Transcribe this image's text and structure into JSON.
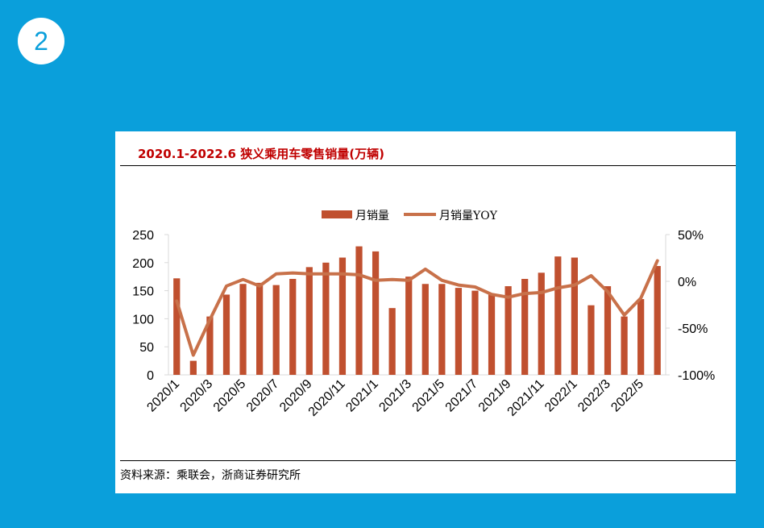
{
  "badge": {
    "number": "2"
  },
  "source": "资料来源：乘联会，浙商证券研究所",
  "colors": {
    "background": "#0a9fdb",
    "bar": "#c0502f",
    "line": "#c8714a",
    "title": "#c00000"
  },
  "chart_data": {
    "type": "bar",
    "title": "2020.1-2022.6 狭义乘用车零售销量(万辆)",
    "categories": [
      "2020/1",
      "2020/2",
      "2020/3",
      "2020/4",
      "2020/5",
      "2020/6",
      "2020/7",
      "2020/8",
      "2020/9",
      "2020/10",
      "2020/11",
      "2020/12",
      "2021/1",
      "2021/2",
      "2021/3",
      "2021/4",
      "2021/5",
      "2021/6",
      "2021/7",
      "2021/8",
      "2021/9",
      "2021/10",
      "2021/11",
      "2021/12",
      "2022/1",
      "2022/2",
      "2022/3",
      "2022/4",
      "2022/5",
      "2022/6"
    ],
    "x_tick_labels": [
      "2020/1",
      "2020/3",
      "2020/5",
      "2020/7",
      "2020/9",
      "2020/11",
      "2021/1",
      "2021/3",
      "2021/5",
      "2021/7",
      "2021/9",
      "2021/11",
      "2022/1",
      "2022/3",
      "2022/5"
    ],
    "series": [
      {
        "name": "月销量",
        "type": "bar",
        "axis": "left",
        "values": [
          172,
          25,
          104,
          143,
          162,
          164,
          160,
          171,
          192,
          200,
          209,
          229,
          220,
          119,
          175,
          162,
          162,
          155,
          150,
          145,
          158,
          171,
          182,
          211,
          209,
          124,
          158,
          104,
          135,
          194
        ]
      },
      {
        "name": "月销量YOY",
        "type": "line",
        "axis": "right",
        "values": [
          -21,
          -79,
          -41,
          -5,
          2,
          -5,
          8,
          9,
          8,
          8,
          8,
          7,
          1,
          2,
          1,
          13,
          1,
          -4,
          -6,
          -14,
          -17,
          -13,
          -12,
          -7,
          -4,
          6,
          -11,
          -36,
          -18,
          22
        ]
      }
    ],
    "y_left": {
      "ylim": [
        0,
        250
      ],
      "ticks": [
        0,
        50,
        100,
        150,
        200,
        250
      ]
    },
    "y_right": {
      "ylim": [
        -100,
        50
      ],
      "ticks": [
        -100,
        -50,
        0,
        50
      ],
      "tick_labels": [
        "-100%",
        "-50%",
        "0%",
        "50%"
      ]
    },
    "legend_position": "top-center",
    "grid": false
  }
}
